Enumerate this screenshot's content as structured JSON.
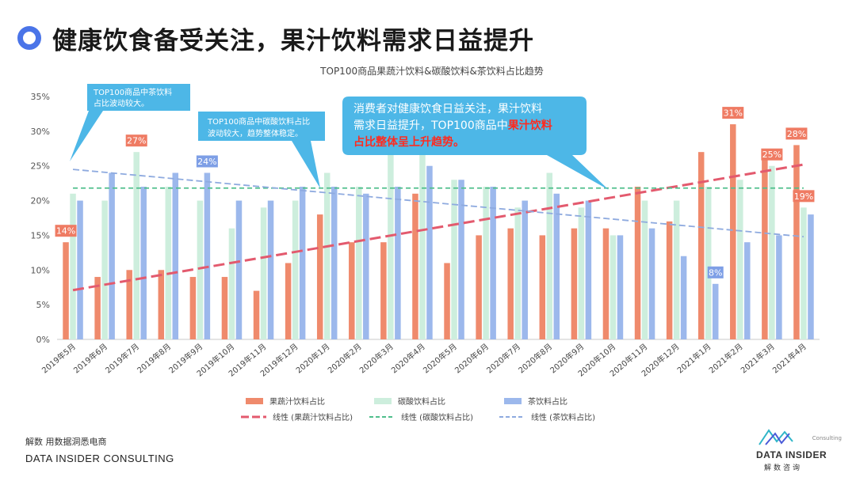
{
  "header": {
    "title": "健康饮食备受关注，果汁饮料需求日益提升"
  },
  "chart_data": {
    "type": "bar",
    "title": "TOP100商品果蔬汁饮料&碳酸饮料&茶饮料占比趋势",
    "categories": [
      "2019年5月",
      "2019年6月",
      "2019年7月",
      "2019年8月",
      "2019年9月",
      "2019年10月",
      "2019年11月",
      "2019年12月",
      "2020年1月",
      "2020年2月",
      "2020年3月",
      "2020年4月",
      "2020年5月",
      "2020年6月",
      "2020年7月",
      "2020年8月",
      "2020年9月",
      "2020年10月",
      "2020年11月",
      "2020年12月",
      "2021年1月",
      "2021年2月",
      "2021年3月",
      "2021年4月"
    ],
    "yticks": [
      "0%",
      "5%",
      "10%",
      "15%",
      "20%",
      "25%",
      "30%",
      "35%"
    ],
    "ylim": [
      0,
      35
    ],
    "series": [
      {
        "name": "果蔬汁饮料占比",
        "color": "#ef8a6c",
        "values": [
          14,
          9,
          10,
          10,
          9,
          9,
          7,
          11,
          18,
          14,
          14,
          21,
          11,
          15,
          16,
          15,
          16,
          16,
          22,
          17,
          27,
          31,
          27,
          28
        ]
      },
      {
        "name": "碳酸饮料占比",
        "color": "#cdeedd",
        "values": [
          21,
          20,
          27,
          22,
          20,
          16,
          19,
          20,
          24,
          22,
          27,
          27,
          23,
          22,
          19,
          24,
          19,
          15,
          20,
          20,
          22,
          23,
          25,
          19
        ]
      },
      {
        "name": "茶饮料占比",
        "color": "#9cb8ec",
        "values": [
          20,
          24,
          22,
          24,
          24,
          20,
          20,
          22,
          22,
          21,
          22,
          25,
          23,
          22,
          20,
          21,
          20,
          15,
          16,
          12,
          8,
          14,
          15,
          18
        ]
      }
    ],
    "trendlines": [
      {
        "name": "线性 (果蔬汁饮料占比)",
        "color": "#e35a6e",
        "from": 7.1,
        "to": 25.2,
        "dash": "14,6"
      },
      {
        "name": "线性 (碳酸饮料占比)",
        "color": "#4fbf8c",
        "from": 21.8,
        "to": 21.8,
        "dash": "6,4"
      },
      {
        "name": "线性 (茶饮料占比)",
        "color": "#8eaadf",
        "from": 24.5,
        "to": 14.8,
        "dash": "8,4"
      }
    ],
    "data_labels": [
      {
        "series": 0,
        "index": 0,
        "text": "14%"
      },
      {
        "series": 1,
        "index": 2,
        "text": "27%"
      },
      {
        "series": 2,
        "index": 4,
        "text": "24%"
      },
      {
        "series": 2,
        "index": 20,
        "text": "8%"
      },
      {
        "series": 0,
        "index": 21,
        "text": "31%"
      },
      {
        "series": 1,
        "index": 22,
        "text": "25%"
      },
      {
        "series": 0,
        "index": 23,
        "text": "28%"
      },
      {
        "series": 1,
        "index": 23,
        "text": "19%"
      }
    ],
    "callouts": [
      {
        "lines": [
          "TOP100商品中茶饮料",
          "占比波动较大。"
        ]
      },
      {
        "lines": [
          "TOP100商品中碳酸饮料占比",
          "波动较大，趋势整体稳定。"
        ]
      },
      {
        "line1": "消费者对健康饮食日益关注，果汁饮料",
        "line2": "需求日益提升，TOP100商品中",
        "line2_highlight": "果汁饮料",
        "line3": "占比整体呈上升趋势。"
      }
    ]
  },
  "footer": {
    "tagline": "解数 用数据洞悉电商",
    "company": "DATA INSIDER CONSULTING",
    "logo_small": "Consulting",
    "logo_main": "DATA INSIDER",
    "logo_cn": "解数咨询"
  }
}
